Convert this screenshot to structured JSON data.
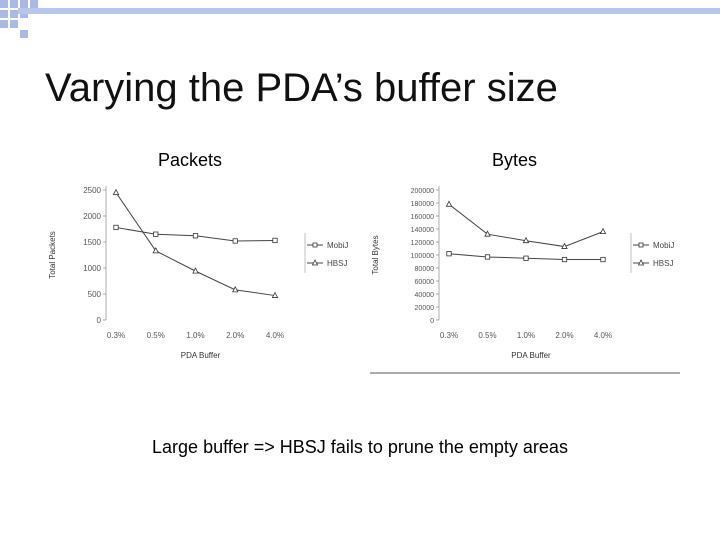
{
  "slide": {
    "title": "Varying the PDA’s buffer size",
    "left_heading": "Packets",
    "right_heading": "Bytes",
    "footer": "Large buffer => HBSJ fails to prune the empty areas",
    "accent_color": "#b8c6ec"
  },
  "chart_data": [
    {
      "type": "line",
      "categories": [
        "0.3%",
        "0.5%",
        "1.0%",
        "2.0%",
        "4.0%"
      ],
      "series": [
        {
          "name": "MobiJ",
          "marker": "square",
          "values": [
            1780,
            1650,
            1620,
            1520,
            1530
          ]
        },
        {
          "name": "HBSJ",
          "marker": "triangle",
          "values": [
            2450,
            1330,
            940,
            580,
            470
          ]
        }
      ],
      "title": "",
      "xlabel": "PDA Buffer",
      "ylabel": "Total Packets",
      "ylim": [
        0,
        2500
      ],
      "yticks": [
        0,
        500,
        1000,
        1500,
        2000,
        2500
      ],
      "ytick_labels": [
        "0",
        "500",
        "1000",
        "1500",
        "2000",
        "2500"
      ],
      "legend": "right",
      "grid": false
    },
    {
      "type": "line",
      "categories": [
        "0.3%",
        "0.5%",
        "1.0%",
        "2.0%",
        "4.0%"
      ],
      "series": [
        {
          "name": "MobiJ",
          "marker": "square",
          "values": [
            102000,
            97000,
            95000,
            93000,
            93000
          ]
        },
        {
          "name": "HBSJ",
          "marker": "triangle",
          "values": [
            178000,
            132000,
            122000,
            113000,
            136000
          ]
        }
      ],
      "title": "",
      "xlabel": "PDA Buffer",
      "ylabel": "Total Bytes",
      "ylim": [
        0,
        200000
      ],
      "yticks": [
        0,
        20000,
        40000,
        60000,
        80000,
        100000,
        120000,
        140000,
        160000,
        180000,
        200000
      ],
      "ytick_labels": [
        "0",
        "20000",
        "40000",
        "60000",
        "80000",
        "100000",
        "120000",
        "140000",
        "160000",
        "180000",
        "200000"
      ],
      "legend": "right",
      "grid": false
    }
  ]
}
